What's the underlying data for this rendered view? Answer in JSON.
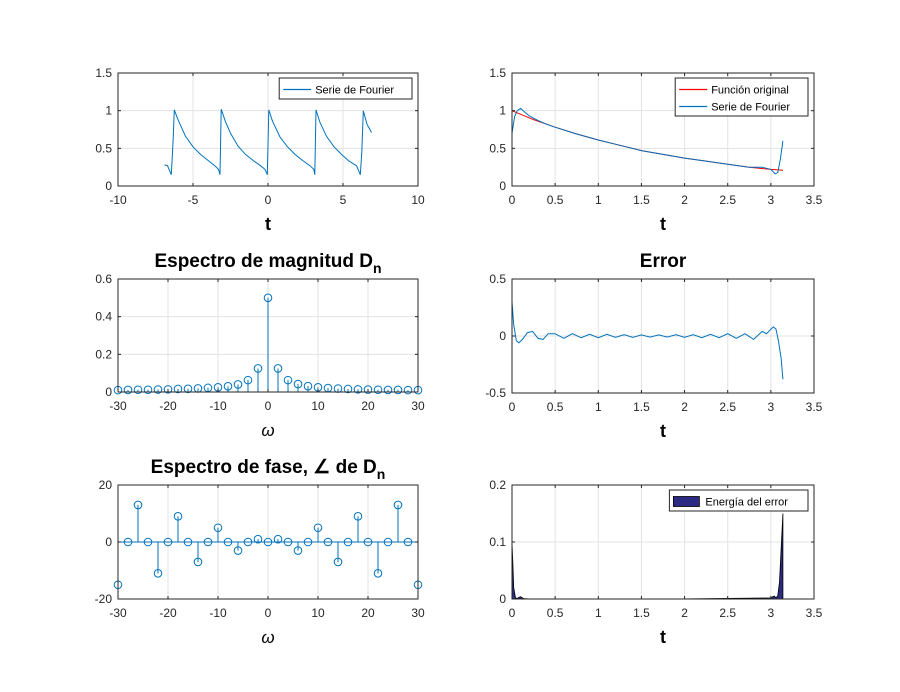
{
  "chart_data": [
    {
      "type": "line",
      "title": "",
      "xlabel": "t",
      "ylabel": "",
      "xlim": [
        -10,
        10
      ],
      "ylim": [
        0,
        1.5
      ],
      "xticks": [
        -10,
        -5,
        0,
        5,
        10
      ],
      "yticks": [
        0,
        0.5,
        1,
        1.5
      ],
      "xtick_labels": [
        "-10",
        "-5",
        "0",
        "5",
        "10"
      ],
      "ytick_labels": [
        "0",
        "0.5",
        "1",
        "1.5"
      ],
      "grid": true,
      "legend": "top-right",
      "legend_entries": [
        "Serie de Fourier"
      ],
      "series": [
        {
          "name": "Serie de Fourier",
          "color": "#0072bd",
          "x": [
            -6.9,
            -6.7,
            -6.45,
            -6.33,
            -6.25,
            -6.0,
            -5.5,
            -5.0,
            -4.5,
            -4.0,
            -3.5,
            -3.3,
            -3.2,
            -3.12,
            -2.85,
            -2.5,
            -2.0,
            -1.5,
            -1.0,
            -0.5,
            -0.2,
            -0.05,
            0.05,
            0.3,
            0.8,
            1.3,
            1.8,
            2.3,
            2.8,
            3.05,
            3.12,
            3.2,
            3.45,
            3.9,
            4.4,
            4.9,
            5.4,
            5.9,
            6.15,
            6.25,
            6.35,
            6.6,
            6.9
          ],
          "y": [
            0.28,
            0.27,
            0.15,
            0.6,
            1.01,
            0.88,
            0.66,
            0.52,
            0.42,
            0.34,
            0.26,
            0.22,
            0.15,
            1.02,
            0.86,
            0.7,
            0.53,
            0.42,
            0.34,
            0.27,
            0.22,
            0.15,
            1.01,
            0.86,
            0.65,
            0.52,
            0.42,
            0.34,
            0.27,
            0.22,
            0.15,
            1.01,
            0.85,
            0.66,
            0.52,
            0.42,
            0.33,
            0.27,
            0.15,
            0.45,
            1.0,
            0.82,
            0.71
          ]
        }
      ]
    },
    {
      "type": "line",
      "title": "",
      "xlabel": "t",
      "ylabel": "",
      "xlim": [
        0,
        3.5
      ],
      "ylim": [
        0,
        1.5
      ],
      "xticks": [
        0,
        0.5,
        1,
        1.5,
        2,
        2.5,
        3,
        3.5
      ],
      "yticks": [
        0,
        0.5,
        1,
        1.5
      ],
      "xtick_labels": [
        "0",
        "0.5",
        "1",
        "1.5",
        "2",
        "2.5",
        "3",
        "3.5"
      ],
      "ytick_labels": [
        "0",
        "0.5",
        "1",
        "1.5"
      ],
      "grid": true,
      "legend": "top-right",
      "legend_entries": [
        "Función original",
        "Serie de Fourier"
      ],
      "series": [
        {
          "name": "Función original",
          "color": "#ff0000",
          "x": [
            0,
            0.25,
            0.5,
            0.75,
            1.0,
            1.25,
            1.5,
            1.75,
            2.0,
            2.25,
            2.5,
            2.75,
            3.0,
            3.14
          ],
          "y": [
            1.0,
            0.88,
            0.78,
            0.69,
            0.61,
            0.54,
            0.47,
            0.42,
            0.37,
            0.33,
            0.29,
            0.25,
            0.22,
            0.21
          ]
        },
        {
          "name": "Serie de Fourier",
          "color": "#0072bd",
          "x": [
            0.0,
            0.03,
            0.06,
            0.1,
            0.15,
            0.2,
            0.3,
            0.4,
            0.5,
            0.75,
            1.0,
            1.25,
            1.5,
            1.75,
            2.0,
            2.25,
            2.5,
            2.75,
            2.9,
            3.0,
            3.05,
            3.08,
            3.11,
            3.14
          ],
          "y": [
            0.7,
            0.92,
            1.0,
            1.03,
            0.98,
            0.93,
            0.87,
            0.82,
            0.78,
            0.69,
            0.61,
            0.54,
            0.47,
            0.42,
            0.37,
            0.33,
            0.29,
            0.25,
            0.25,
            0.22,
            0.16,
            0.18,
            0.35,
            0.6
          ]
        }
      ]
    },
    {
      "type": "stem",
      "title": "Espectro de magnitud D",
      "title_subscript": "n",
      "xlabel": "ω",
      "ylabel": "",
      "xlim": [
        -30,
        30
      ],
      "ylim": [
        0,
        0.6
      ],
      "xticks": [
        -30,
        -20,
        -10,
        0,
        10,
        20,
        30
      ],
      "yticks": [
        0,
        0.2,
        0.4,
        0.6
      ],
      "xtick_labels": [
        "-30",
        "-20",
        "-10",
        "0",
        "10",
        "20",
        "30"
      ],
      "ytick_labels": [
        "0",
        "0.2",
        "0.4",
        "0.6"
      ],
      "grid": true,
      "color": "#0072bd",
      "x": [
        -30,
        -28,
        -26,
        -24,
        -22,
        -20,
        -18,
        -16,
        -14,
        -12,
        -10,
        -8,
        -6,
        -4,
        -2,
        0,
        2,
        4,
        6,
        8,
        10,
        12,
        14,
        16,
        18,
        20,
        22,
        24,
        26,
        28,
        30
      ],
      "y": [
        0.01,
        0.011,
        0.012,
        0.012,
        0.013,
        0.014,
        0.016,
        0.017,
        0.019,
        0.022,
        0.025,
        0.03,
        0.04,
        0.063,
        0.125,
        0.5,
        0.125,
        0.063,
        0.042,
        0.031,
        0.025,
        0.021,
        0.018,
        0.016,
        0.014,
        0.013,
        0.012,
        0.011,
        0.011,
        0.01,
        0.01
      ]
    },
    {
      "type": "line",
      "title": "Error",
      "xlabel": "t",
      "ylabel": "",
      "xlim": [
        0,
        3.5
      ],
      "ylim": [
        -0.5,
        0.5
      ],
      "xticks": [
        0,
        0.5,
        1,
        1.5,
        2,
        2.5,
        3,
        3.5
      ],
      "yticks": [
        -0.5,
        0,
        0.5
      ],
      "xtick_labels": [
        "0",
        "0.5",
        "1",
        "1.5",
        "2",
        "2.5",
        "3",
        "3.5"
      ],
      "ytick_labels": [
        "-0.5",
        "0",
        "0.5"
      ],
      "grid": true,
      "series": [
        {
          "name": "",
          "color": "#0072bd",
          "x": [
            0.0,
            0.02,
            0.05,
            0.08,
            0.12,
            0.18,
            0.24,
            0.3,
            0.36,
            0.42,
            0.5,
            0.6,
            0.7,
            0.8,
            0.9,
            1.0,
            1.1,
            1.2,
            1.3,
            1.4,
            1.5,
            1.6,
            1.7,
            1.8,
            1.9,
            2.0,
            2.1,
            2.2,
            2.3,
            2.4,
            2.5,
            2.6,
            2.7,
            2.8,
            2.9,
            2.95,
            3.0,
            3.03,
            3.06,
            3.09,
            3.12,
            3.14
          ],
          "y": [
            0.3,
            0.1,
            -0.04,
            -0.06,
            -0.03,
            0.03,
            0.04,
            -0.02,
            -0.03,
            0.02,
            0.02,
            -0.02,
            0.02,
            -0.015,
            0.015,
            -0.015,
            0.015,
            -0.012,
            0.012,
            -0.012,
            0.01,
            -0.01,
            0.01,
            -0.01,
            0.012,
            -0.012,
            0.012,
            -0.015,
            0.015,
            -0.015,
            0.02,
            -0.02,
            0.02,
            -0.03,
            0.04,
            0.02,
            0.06,
            0.08,
            0.06,
            -0.05,
            -0.2,
            -0.38
          ]
        }
      ]
    },
    {
      "type": "area",
      "title": "",
      "xlabel": "t",
      "ylabel": "",
      "xlim": [
        0,
        3.5
      ],
      "ylim": [
        0,
        0.2
      ],
      "xticks": [
        0,
        0.5,
        1,
        1.5,
        2,
        2.5,
        3,
        3.5
      ],
      "yticks": [
        0,
        0.1,
        0.2
      ],
      "xtick_labels": [
        "0",
        "0.5",
        "1",
        "1.5",
        "2",
        "2.5",
        "3",
        "3.5"
      ],
      "ytick_labels": [
        "0",
        "0.1",
        "0.2"
      ],
      "grid": true,
      "legend": "top-right",
      "legend_entries": [
        "Energía del error"
      ],
      "series": [
        {
          "name": "Energía del error",
          "color": "#2b2b84",
          "x": [
            0.0,
            0.01,
            0.02,
            0.04,
            0.06,
            0.08,
            0.1,
            0.12,
            0.14,
            0.2,
            1.0,
            2.0,
            3.0,
            3.02,
            3.04,
            3.06,
            3.08,
            3.1,
            3.12,
            3.14
          ],
          "y": [
            0.1,
            0.06,
            0.02,
            0.002,
            0.001,
            0.003,
            0.004,
            0.002,
            0.0005,
            0.0002,
            0.0001,
            0.0001,
            0.002,
            0.004,
            0.005,
            0.002,
            0.006,
            0.03,
            0.09,
            0.15
          ]
        }
      ]
    },
    {
      "type": "stem",
      "title": "Espectro de fase, ∠ de D",
      "title_subscript": "n",
      "xlabel": "ω",
      "ylabel": "",
      "xlim": [
        -30,
        30
      ],
      "ylim": [
        -20,
        20
      ],
      "xticks": [
        -30,
        -20,
        -10,
        0,
        10,
        20,
        30
      ],
      "yticks": [
        -20,
        0,
        20
      ],
      "xtick_labels": [
        "-30",
        "-20",
        "-10",
        "0",
        "10",
        "20",
        "30"
      ],
      "ytick_labels": [
        "-20",
        "0",
        "20"
      ],
      "grid": true,
      "color": "#0072bd",
      "x": [
        -30,
        -28,
        -26,
        -24,
        -22,
        -20,
        -18,
        -16,
        -14,
        -12,
        -10,
        -8,
        -6,
        -4,
        -2,
        0,
        2,
        4,
        6,
        8,
        10,
        12,
        14,
        16,
        18,
        20,
        22,
        24,
        26,
        28,
        30
      ],
      "y": [
        -15,
        0,
        13,
        0,
        -11,
        0,
        9,
        0,
        -7,
        0,
        5,
        0,
        -3,
        0,
        1,
        0,
        1,
        0,
        -3,
        0,
        5,
        0,
        -7,
        0,
        9,
        0,
        -11,
        0,
        13,
        0,
        -15
      ]
    }
  ]
}
